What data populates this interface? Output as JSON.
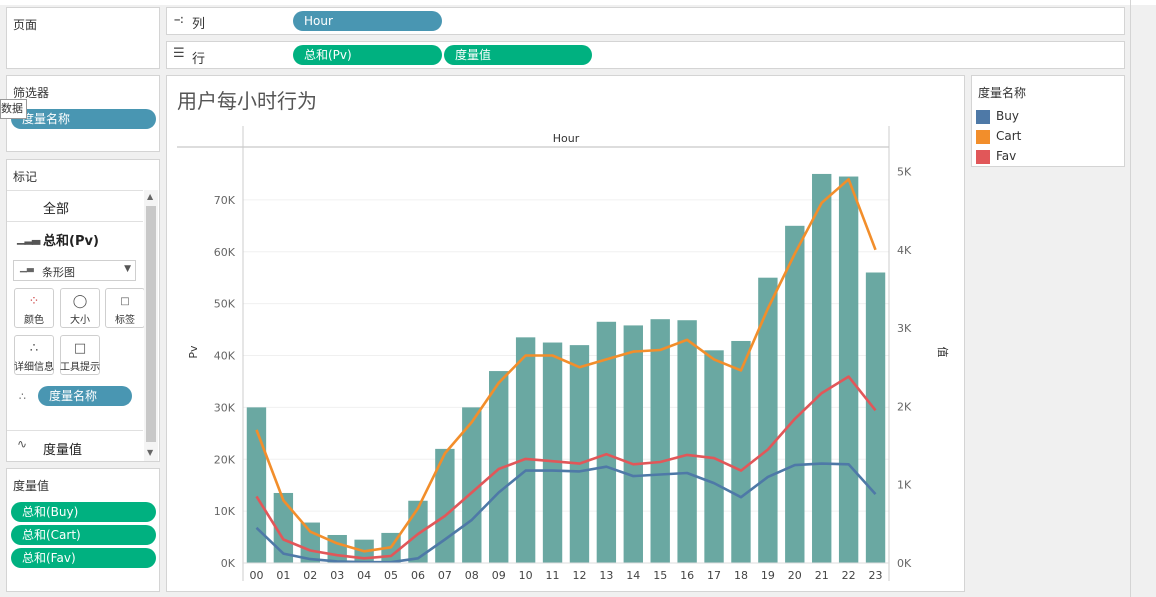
{
  "shelves": {
    "pages_title": "页面",
    "columns_label": "列",
    "columns_pill": "Hour",
    "rows_label": "行",
    "rows_pills": [
      "总和(Pv)",
      "度量值"
    ]
  },
  "filters": {
    "title": "筛选器",
    "pill": "度量名称",
    "tooltip": "数据"
  },
  "marks": {
    "title": "标记",
    "all_label": "全部",
    "pv_label": "总和(Pv)",
    "mark_type": "条形图",
    "buttons": [
      "颜色",
      "大小",
      "标签",
      "详细信息",
      "工具提示"
    ],
    "detail_pill": "度量名称",
    "measure_values_label": "度量值"
  },
  "measure_values": {
    "title": "度量值",
    "pills": [
      "总和(Buy)",
      "总和(Cart)",
      "总和(Fav)"
    ]
  },
  "legend": {
    "title": "度量名称",
    "items": [
      {
        "name": "Buy",
        "color": "#4e79a7"
      },
      {
        "name": "Cart",
        "color": "#f28e2b"
      },
      {
        "name": "Fav",
        "color": "#e15759"
      }
    ]
  },
  "chart_data": {
    "type": "bar",
    "title": "用户每小时行为",
    "xlabel": "Hour",
    "ylabel_left": "Pv",
    "ylabel_right": "值",
    "categories": [
      "00",
      "01",
      "02",
      "03",
      "04",
      "05",
      "06",
      "07",
      "08",
      "09",
      "10",
      "11",
      "12",
      "13",
      "14",
      "15",
      "16",
      "17",
      "18",
      "19",
      "20",
      "21",
      "22",
      "23"
    ],
    "bar_series": {
      "name": "Pv",
      "color": "#6aa8a2",
      "values": [
        30000,
        13500,
        7800,
        5400,
        4500,
        5800,
        12000,
        22000,
        30000,
        37000,
        43500,
        42500,
        42000,
        46500,
        45800,
        47000,
        46800,
        41000,
        42800,
        55000,
        65000,
        75000,
        74500,
        56000
      ]
    },
    "line_series": [
      {
        "name": "Buy",
        "color": "#4e79a7",
        "values": [
          450,
          120,
          50,
          20,
          10,
          10,
          60,
          300,
          550,
          900,
          1180,
          1180,
          1170,
          1230,
          1110,
          1130,
          1150,
          1020,
          840,
          1100,
          1250,
          1270,
          1260,
          880
        ]
      },
      {
        "name": "Cart",
        "color": "#f28e2b",
        "values": [
          1700,
          800,
          400,
          250,
          150,
          200,
          700,
          1400,
          1800,
          2300,
          2650,
          2650,
          2500,
          2600,
          2700,
          2720,
          2850,
          2600,
          2460,
          3250,
          3950,
          4600,
          4900,
          4000
        ]
      },
      {
        "name": "Fav",
        "color": "#e15759",
        "values": [
          850,
          300,
          160,
          100,
          60,
          90,
          370,
          600,
          900,
          1200,
          1330,
          1300,
          1270,
          1390,
          1260,
          1290,
          1380,
          1340,
          1180,
          1450,
          1840,
          2170,
          2380,
          1950
        ]
      }
    ],
    "ylim_left": [
      0,
      80000
    ],
    "yticks_left": [
      "0K",
      "10K",
      "20K",
      "30K",
      "40K",
      "50K",
      "60K",
      "70K"
    ],
    "ylim_right": [
      0,
      5300
    ],
    "yticks_right": [
      "0K",
      "1K",
      "2K",
      "3K",
      "4K",
      "5K"
    ],
    "grid": true
  }
}
